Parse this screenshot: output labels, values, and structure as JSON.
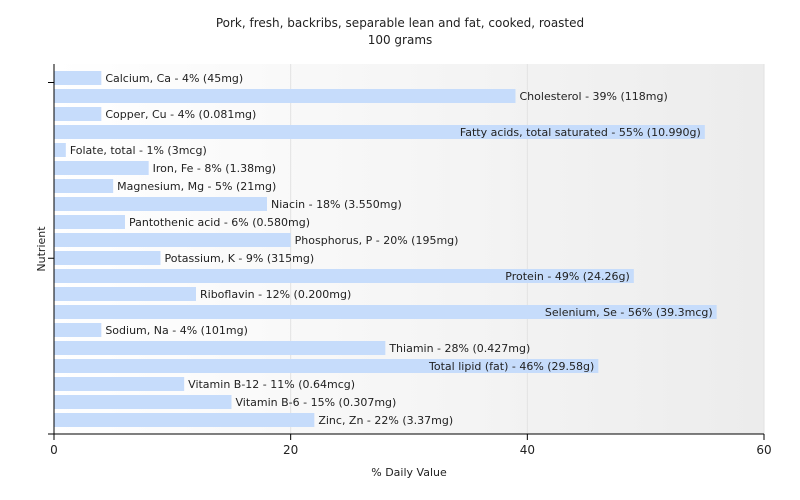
{
  "chart_data": {
    "type": "bar",
    "orientation": "horizontal",
    "title": "Pork, fresh, backribs, separable lean and fat, cooked, roasted",
    "subtitle": "100 grams",
    "xlabel": "% Daily Value",
    "ylabel": "Nutrient",
    "xlim": [
      0,
      60
    ],
    "xticks": [
      "0",
      "20",
      "40",
      "60"
    ],
    "grid": true,
    "bar_color": "#c6dcfb",
    "categories": [
      "Calcium, Ca",
      "Cholesterol",
      "Copper, Cu",
      "Fatty acids, total saturated",
      "Folate, total",
      "Iron, Fe",
      "Magnesium, Mg",
      "Niacin",
      "Pantothenic acid",
      "Phosphorus, P",
      "Potassium, K",
      "Protein",
      "Riboflavin",
      "Selenium, Se",
      "Sodium, Na",
      "Thiamin",
      "Total lipid (fat)",
      "Vitamin B-12",
      "Vitamin B-6",
      "Zinc, Zn"
    ],
    "values": [
      4,
      39,
      4,
      55,
      1,
      8,
      5,
      18,
      6,
      20,
      9,
      49,
      12,
      56,
      4,
      28,
      46,
      11,
      15,
      22
    ],
    "labels": [
      "Calcium, Ca - 4% (45mg)",
      "Cholesterol - 39% (118mg)",
      "Copper, Cu - 4% (0.081mg)",
      "Fatty acids, total saturated - 55% (10.990g)",
      "Folate, total - 1% (3mcg)",
      "Iron, Fe - 8% (1.38mg)",
      "Magnesium, Mg - 5% (21mg)",
      "Niacin - 18% (3.550mg)",
      "Pantothenic acid - 6% (0.580mg)",
      "Phosphorus, P - 20% (195mg)",
      "Potassium, K - 9% (315mg)",
      "Protein - 49% (24.26g)",
      "Riboflavin - 12% (0.200mg)",
      "Selenium, Se - 56% (39.3mcg)",
      "Sodium, Na - 4% (101mg)",
      "Thiamin - 28% (0.427mg)",
      "Total lipid (fat) - 46% (29.58g)",
      "Vitamin B-12 - 11% (0.64mcg)",
      "Vitamin B-6 - 15% (0.307mg)",
      "Zinc, Zn - 22% (3.37mg)"
    ]
  }
}
